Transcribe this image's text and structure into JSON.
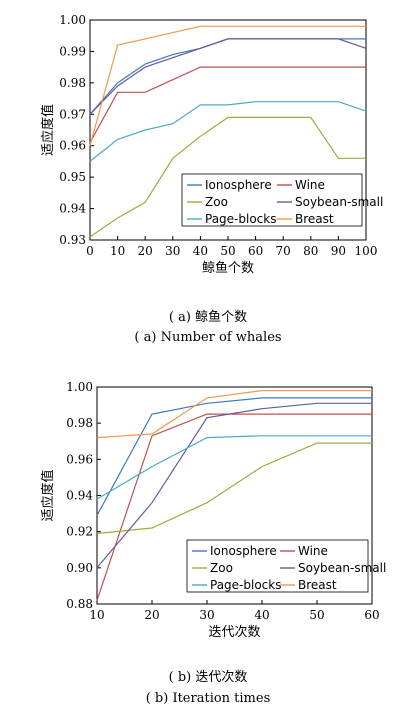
{
  "colors": {
    "Ionosphere": "#3a7bbf",
    "Wine": "#c0504d",
    "Zoo": "#9bad3c",
    "Soybean-small": "#6a5a9a",
    "Page-blocks": "#4aabc6",
    "Breast": "#f2994a"
  },
  "chart_data": [
    {
      "type": "line",
      "xlabel": "鲸鱼个数",
      "ylabel": "适应度值",
      "x": [
        0,
        10,
        20,
        30,
        40,
        50,
        60,
        70,
        80,
        90,
        100
      ],
      "xticks": [
        "0",
        "10",
        "20",
        "30",
        "40",
        "50",
        "60",
        "70",
        "80",
        "90",
        "100"
      ],
      "yticks": [
        "0.93",
        "0.94",
        "0.95",
        "0.96",
        "0.97",
        "0.98",
        "0.99",
        "1.00"
      ],
      "xlim": [
        0,
        100
      ],
      "ylim": [
        0.93,
        1.0
      ],
      "series": [
        {
          "name": "Ionosphere",
          "values": [
            0.97,
            0.98,
            0.986,
            0.989,
            0.991,
            0.994,
            0.994,
            0.994,
            0.994,
            0.994,
            0.994
          ]
        },
        {
          "name": "Wine",
          "values": [
            0.961,
            0.977,
            0.977,
            0.981,
            0.985,
            0.985,
            0.985,
            0.985,
            0.985,
            0.985,
            0.985
          ]
        },
        {
          "name": "Zoo",
          "values": [
            0.931,
            0.937,
            0.942,
            0.956,
            0.963,
            0.969,
            0.969,
            0.969,
            0.969,
            0.956,
            0.956
          ]
        },
        {
          "name": "Soybean-small",
          "values": [
            0.97,
            0.979,
            0.985,
            0.988,
            0.991,
            0.994,
            0.994,
            0.994,
            0.994,
            0.994,
            0.991
          ]
        },
        {
          "name": "Page-blocks",
          "values": [
            0.955,
            0.962,
            0.965,
            0.967,
            0.973,
            0.973,
            0.974,
            0.974,
            0.974,
            0.974,
            0.971
          ]
        },
        {
          "name": "Breast",
          "values": [
            0.96,
            0.992,
            0.994,
            0.996,
            0.998,
            0.998,
            0.998,
            0.998,
            0.998,
            0.998,
            0.998
          ]
        }
      ],
      "legend": {
        "position": "bottom-right",
        "entries": [
          "Ionosphere",
          "Wine",
          "Zoo",
          "Soybean-small",
          "Page-blocks",
          "Breast"
        ]
      },
      "caption_cn": "( a) 鲸鱼个数",
      "caption_en": "( a) Number of whales"
    },
    {
      "type": "line",
      "xlabel": "迭代次数",
      "ylabel": "适应度值",
      "x": [
        10,
        20,
        30,
        40,
        50,
        60
      ],
      "xticks": [
        "10",
        "20",
        "30",
        "40",
        "50",
        "60"
      ],
      "yticks": [
        "0.88",
        "0.90",
        "0.92",
        "0.94",
        "0.96",
        "0.98",
        "1.00"
      ],
      "xlim": [
        10,
        60
      ],
      "ylim": [
        0.88,
        1.0
      ],
      "series": [
        {
          "name": "Ionosphere",
          "values": [
            0.929,
            0.985,
            0.991,
            0.994,
            0.994,
            0.994
          ]
        },
        {
          "name": "Wine",
          "values": [
            0.882,
            0.973,
            0.985,
            0.985,
            0.985,
            0.985
          ]
        },
        {
          "name": "Zoo",
          "values": [
            0.919,
            0.922,
            0.936,
            0.956,
            0.969,
            0.969
          ]
        },
        {
          "name": "Soybean-small",
          "values": [
            0.9,
            0.936,
            0.983,
            0.988,
            0.991,
            0.991
          ]
        },
        {
          "name": "Page-blocks",
          "values": [
            0.938,
            0.956,
            0.972,
            0.973,
            0.973,
            0.973
          ]
        },
        {
          "name": "Breast",
          "values": [
            0.972,
            0.974,
            0.994,
            0.998,
            0.998,
            0.998
          ]
        }
      ],
      "legend": {
        "position": "bottom-right",
        "entries": [
          "Ionosphere",
          "Wine",
          "Zoo",
          "Soybean-small",
          "Page-blocks",
          "Breast"
        ]
      },
      "caption_cn": "( b) 迭代次数",
      "caption_en": "( b) Iteration times"
    }
  ]
}
